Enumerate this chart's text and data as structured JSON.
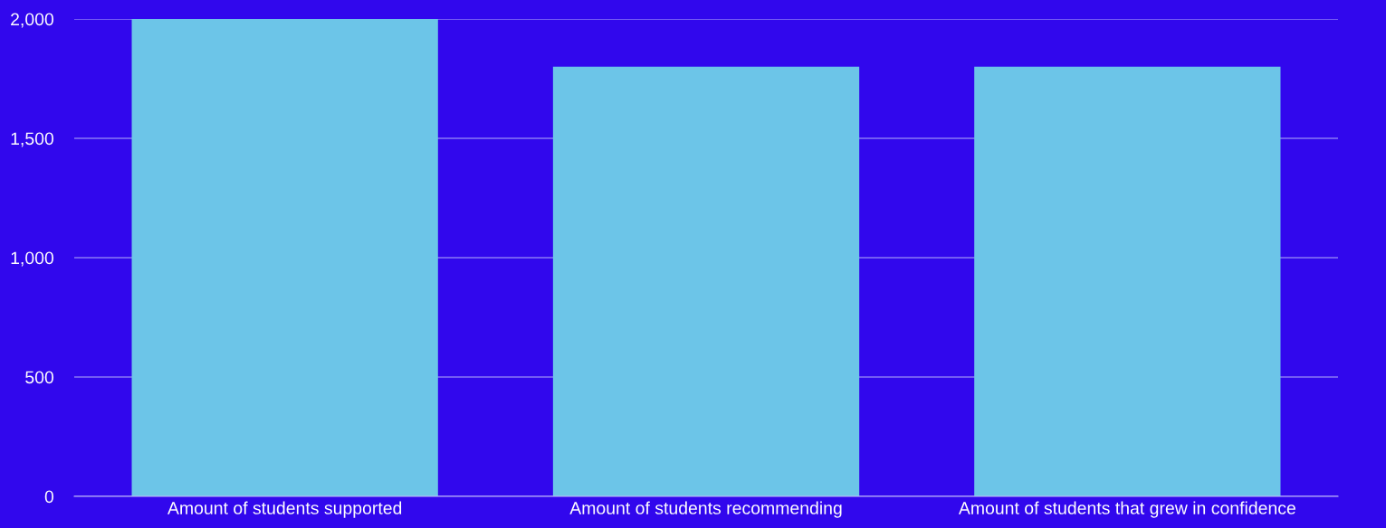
{
  "chart_data": {
    "type": "bar",
    "categories": [
      "Amount of students supported",
      "Amount of students recommending",
      "Amount of students that grew in confidence"
    ],
    "values": [
      2000,
      1800,
      1800
    ],
    "color": "#6cc5e8",
    "ylim": [
      0,
      2000
    ],
    "yticks": [
      {
        "value": 0,
        "label": "0"
      },
      {
        "value": 500,
        "label": "500"
      },
      {
        "value": 1000,
        "label": "1,000"
      },
      {
        "value": 1500,
        "label": "1,500"
      },
      {
        "value": 2000,
        "label": "2,000"
      }
    ],
    "grid": "y"
  }
}
